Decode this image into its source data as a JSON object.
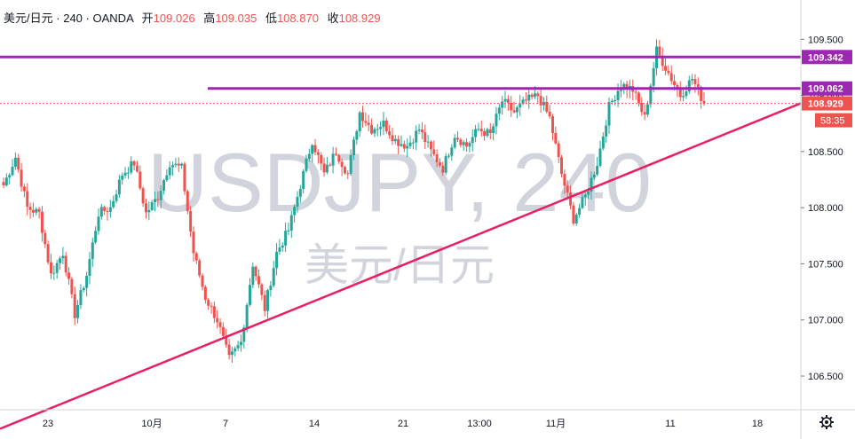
{
  "header": {
    "symbol": "美元/日元",
    "interval": "240",
    "broker": "OANDA",
    "separator": "·",
    "open_label": "开",
    "open_value": "109.026",
    "high_label": "高",
    "high_value": "109.035",
    "low_label": "低",
    "low_value": "108.870",
    "close_label": "收",
    "close_value": "108.929"
  },
  "watermark": {
    "line1": "USDJPY, 240",
    "line2": "美元/日元"
  },
  "colors": {
    "up": "#26a69a",
    "down": "#ef5350",
    "hline": "#9c27b0",
    "trendline": "#e91e63",
    "price_tag": "#ef5350",
    "watermark": "#d1d4dc"
  },
  "icons": {
    "settings": "gear-icon"
  },
  "chart_data": {
    "type": "candlestick",
    "ylim": [
      106.2,
      109.85
    ],
    "y_ticks": [
      "109.500",
      "109.000",
      "108.500",
      "108.000",
      "107.500",
      "107.000",
      "106.500"
    ],
    "x_labels": [
      "23",
      "10月",
      "7",
      "14",
      "21",
      "13:00",
      "11月",
      "11",
      "18"
    ],
    "horizontal_levels": [
      {
        "value": 109.342,
        "label": "109.342",
        "start": "full"
      },
      {
        "value": 109.062,
        "label": "109.062",
        "start": "partial"
      }
    ],
    "last_price": {
      "value": 108.929,
      "label": "108.929",
      "countdown": "58:35"
    },
    "trendline_from": 106.03,
    "trendline_to": 108.93,
    "anchors": [
      108.2,
      108.45,
      108.0,
      107.95,
      107.4,
      107.6,
      107.05,
      107.4,
      107.95,
      108.0,
      108.3,
      108.4,
      107.95,
      108.1,
      108.4,
      108.35,
      107.6,
      107.2,
      107.0,
      106.65,
      106.8,
      107.5,
      107.1,
      107.6,
      107.8,
      108.2,
      108.6,
      108.3,
      108.5,
      108.3,
      108.85,
      108.7,
      108.75,
      108.6,
      108.55,
      108.7,
      108.5,
      108.35,
      108.65,
      108.55,
      108.7,
      108.65,
      108.95,
      108.85,
      108.95,
      109.0,
      108.8,
      108.3,
      107.9,
      108.1,
      108.4,
      108.9,
      109.1,
      109.05,
      108.8,
      109.4,
      109.2,
      109.0,
      109.15,
      108.93
    ]
  }
}
